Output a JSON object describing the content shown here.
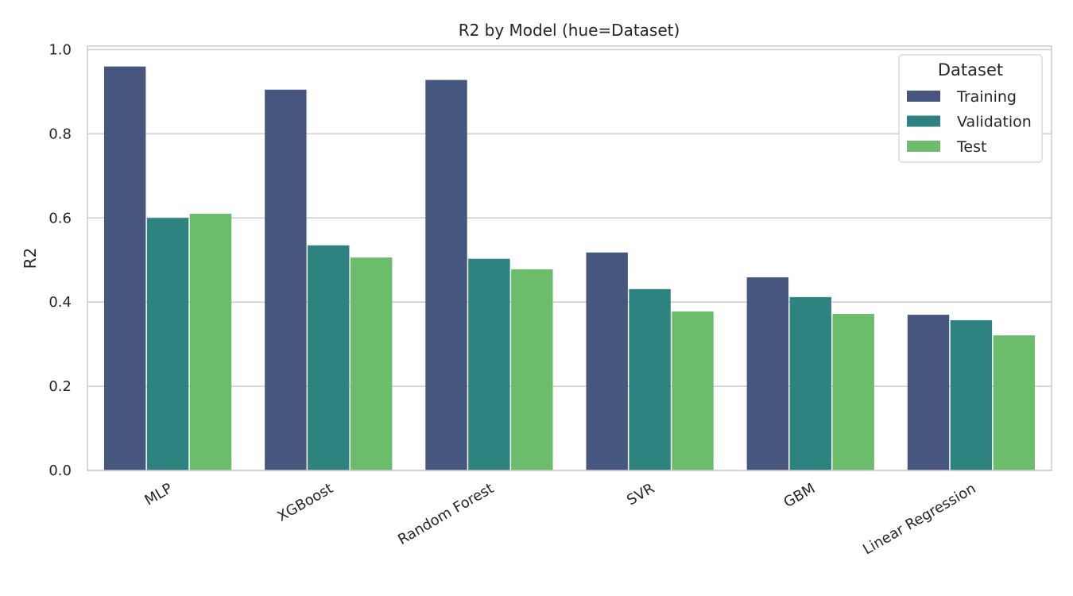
{
  "chart_data": {
    "type": "bar",
    "title": "R2 by Model (hue=Dataset)",
    "xlabel": "",
    "ylabel": "R2",
    "ylim": [
      0,
      1.0
    ],
    "yticks": [
      0.0,
      0.2,
      0.4,
      0.6,
      0.8,
      1.0
    ],
    "ytick_labels": [
      "0.0",
      "0.2",
      "0.4",
      "0.6",
      "0.8",
      "1.0"
    ],
    "grid": "horizontal",
    "legend": {
      "title": "Dataset",
      "placement": "top-right"
    },
    "categories": [
      "MLP",
      "XGBoost",
      "Random Forest",
      "SVR",
      "GBM",
      "Linear Regression"
    ],
    "series": [
      {
        "name": "Training",
        "color": "#46567f",
        "values": [
          0.96,
          0.905,
          0.928,
          0.518,
          0.459,
          0.37
        ]
      },
      {
        "name": "Validation",
        "color": "#2e8380",
        "values": [
          0.6,
          0.535,
          0.503,
          0.431,
          0.412,
          0.357
        ]
      },
      {
        "name": "Test",
        "color": "#6bbd6b",
        "values": [
          0.61,
          0.506,
          0.478,
          0.378,
          0.372,
          0.321
        ]
      }
    ]
  }
}
